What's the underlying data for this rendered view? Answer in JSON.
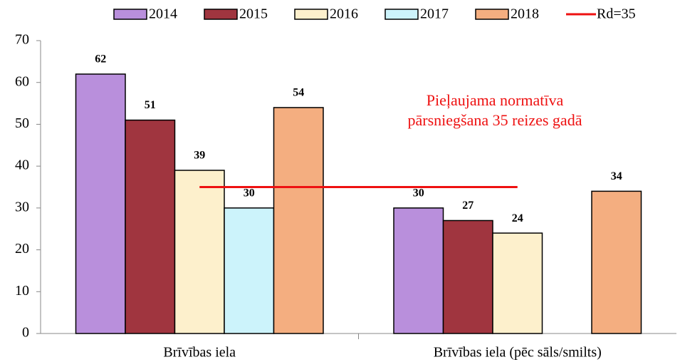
{
  "chart_data": {
    "type": "bar",
    "categories": [
      "Brīvības iela",
      "Brīvības iela (pēc sāls/smilts)"
    ],
    "series": [
      {
        "name": "2014",
        "color": "#b98fdc",
        "values": [
          62,
          30
        ]
      },
      {
        "name": "2015",
        "color": "#a0353f",
        "values": [
          51,
          27
        ]
      },
      {
        "name": "2016",
        "color": "#fdf0cc",
        "values": [
          39,
          24
        ]
      },
      {
        "name": "2017",
        "color": "#ccf3fb",
        "values": [
          30,
          null
        ]
      },
      {
        "name": "2018",
        "color": "#f4ae80",
        "values": [
          54,
          34
        ]
      }
    ],
    "reference_line": {
      "name": "Rd=35",
      "value": 35,
      "color": "#ee1111"
    },
    "annotation": [
      "Pieļaujama normatīva",
      "pārsniegšana 35 reizes gadā"
    ],
    "annotation_color": "#ee1111",
    "ylim": [
      0,
      70
    ],
    "yticks": [
      0,
      10,
      20,
      30,
      40,
      50,
      60,
      70
    ],
    "grid": false,
    "legend": "top"
  }
}
